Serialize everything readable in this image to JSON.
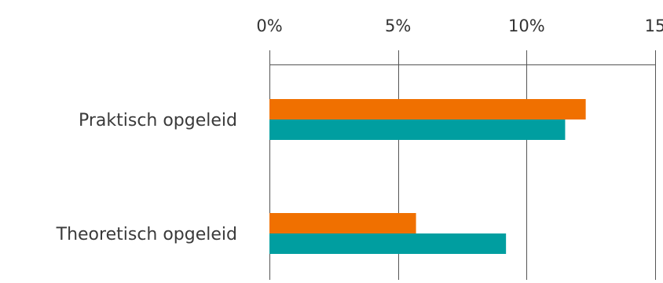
{
  "chart_data": {
    "type": "bar",
    "orientation": "horizontal",
    "categories": [
      "Praktisch opgeleid",
      "Theoretisch opgeleid"
    ],
    "series": [
      {
        "values": [
          12.3,
          5.7
        ],
        "color": "#f07000"
      },
      {
        "values": [
          11.5,
          9.2
        ],
        "color": "#009ea0"
      }
    ],
    "x_tick_labels": [
      "0%",
      "5%",
      "10%",
      "15"
    ],
    "x_ticks": [
      0,
      5,
      10,
      15
    ],
    "xlim": [
      0,
      15
    ],
    "x_axis_position": "top",
    "grid": "vertical",
    "title": "",
    "xlabel": "",
    "ylabel": ""
  }
}
